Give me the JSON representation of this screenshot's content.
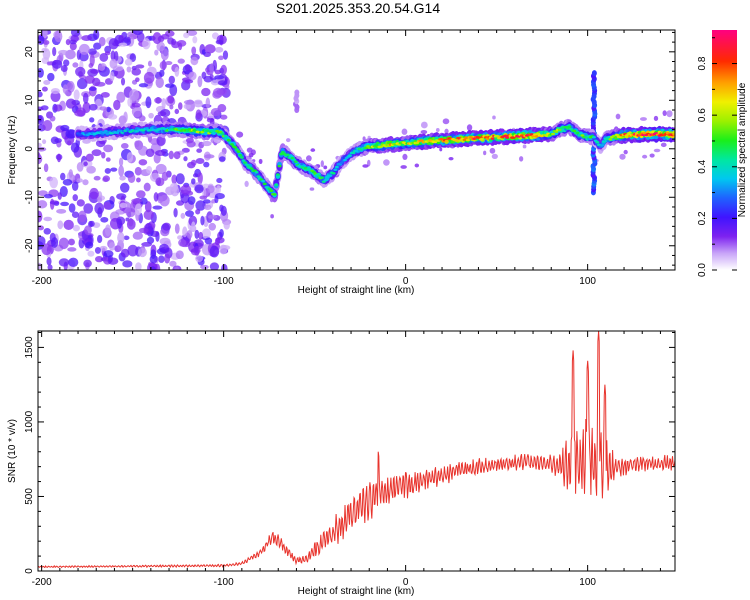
{
  "figure_title": "S201.2025.353.20.54.G14",
  "chart_data": [
    {
      "type": "heatmap",
      "title": "S201.2025.353.20.54.G14",
      "xlabel": "Height of straight line (km)",
      "ylabel": "Frequency (Hz)",
      "xlim": [
        -202,
        148
      ],
      "ylim": [
        -25,
        24.5
      ],
      "xticks": [
        "-200",
        "-100",
        "0",
        "100"
      ],
      "xtick_values": [
        -200,
        -100,
        0,
        100
      ],
      "yticks": [
        "-20",
        "-10",
        "0",
        "10",
        "20"
      ],
      "ytick_values": [
        -20,
        -10,
        0,
        10,
        20
      ],
      "colorbar": {
        "label": "Normalized spectral amplitude",
        "range": [
          0,
          0.93
        ],
        "ticks": [
          "0.0",
          "0.2",
          "0.4",
          "0.6",
          "0.8"
        ],
        "tick_values": [
          0,
          0.2,
          0.4,
          0.6,
          0.8
        ]
      },
      "ridge": {
        "x": [
          -180,
          -160,
          -140,
          -125,
          -112,
          -102,
          -95,
          -88,
          -82,
          -77,
          -72,
          -68,
          -64,
          -60,
          -55,
          -50,
          -45,
          -40,
          -36,
          -30,
          -25,
          -20,
          -10,
          0,
          10,
          20,
          30,
          40,
          50,
          60,
          70,
          80,
          85,
          90,
          95,
          100,
          103,
          107,
          110,
          115,
          120,
          130,
          140,
          148
        ],
        "freq_hz": [
          3.0,
          3.5,
          4.0,
          4.0,
          3.5,
          3.5,
          1.0,
          -3.0,
          -5.0,
          -7.5,
          -9.5,
          -0.5,
          -1.5,
          -3.0,
          -4.0,
          -5.0,
          -6.5,
          -5.0,
          -3.0,
          -1.0,
          0.0,
          0.5,
          0.8,
          1.2,
          1.5,
          1.8,
          2.0,
          2.2,
          2.4,
          2.6,
          2.8,
          3.0,
          4.0,
          4.5,
          3.0,
          2.5,
          2.5,
          0.5,
          2.0,
          2.5,
          2.8,
          3.0,
          3.0,
          3.0
        ],
        "amplitude": [
          0.3,
          0.35,
          0.4,
          0.5,
          0.55,
          0.5,
          0.45,
          0.45,
          0.45,
          0.45,
          0.5,
          0.45,
          0.45,
          0.45,
          0.45,
          0.5,
          0.45,
          0.4,
          0.35,
          0.35,
          0.45,
          0.55,
          0.7,
          0.6,
          0.7,
          0.75,
          0.8,
          0.8,
          0.75,
          0.8,
          0.8,
          0.6,
          0.55,
          0.5,
          0.5,
          0.5,
          0.45,
          0.35,
          0.45,
          0.6,
          0.75,
          0.85,
          0.9,
          0.85
        ]
      },
      "noise": {
        "x_range": [
          -202,
          -98
        ],
        "freq_range": [
          -25,
          24.5
        ],
        "amplitude_range": [
          0.05,
          0.2
        ]
      },
      "spikes": [
        {
          "x": 103.5,
          "freq_from_hz": -9,
          "freq_to_hz": 16,
          "amplitude": 0.3
        },
        {
          "x": -60,
          "freq_from_hz": 8,
          "freq_to_hz": 12,
          "amplitude": 0.1
        }
      ]
    },
    {
      "type": "line",
      "title": "",
      "xlabel": "Height of straight line (km)",
      "ylabel": "SNR (10 * v/v)",
      "xlim": [
        -202,
        148
      ],
      "ylim": [
        0,
        1610
      ],
      "xticks": [
        "-200",
        "-100",
        "0",
        "100"
      ],
      "xtick_values": [
        -200,
        -100,
        0,
        100
      ],
      "yticks": [
        "0",
        "500",
        "1000",
        "1500"
      ],
      "ytick_values": [
        0,
        500,
        1000,
        1500
      ],
      "series": [
        {
          "name": "SNR",
          "color": "#e8332c",
          "envelope_x": [
            -202,
            -150,
            -100,
            -90,
            -80,
            -75,
            -70,
            -65,
            -60,
            -55,
            -50,
            -45,
            -40,
            -35,
            -30,
            -25,
            -20,
            -15,
            -10,
            -5,
            0,
            5,
            10,
            20,
            30,
            40,
            50,
            60,
            70,
            80,
            85,
            90,
            95,
            100,
            105,
            110,
            115,
            120,
            130,
            140,
            148
          ],
          "envelope_y": [
            28,
            32,
            36,
            50,
            120,
            200,
            210,
            130,
            70,
            80,
            140,
            210,
            260,
            310,
            380,
            420,
            480,
            500,
            540,
            560,
            580,
            590,
            610,
            640,
            680,
            700,
            710,
            730,
            730,
            720,
            700,
            720,
            740,
            760,
            720,
            700,
            690,
            700,
            720,
            720,
            730
          ],
          "oscillation": [
            5,
            6,
            8,
            10,
            20,
            35,
            40,
            30,
            20,
            30,
            50,
            70,
            90,
            100,
            110,
            120,
            130,
            120,
            110,
            100,
            90,
            80,
            70,
            60,
            55,
            50,
            50,
            50,
            50,
            60,
            80,
            200,
            250,
            250,
            250,
            250,
            60,
            55,
            50,
            50,
            50
          ],
          "peaks": [
            {
              "x": 92,
              "y": 1480
            },
            {
              "x": 100,
              "y": 1420
            },
            {
              "x": 106,
              "y": 1610
            },
            {
              "x": 109.5,
              "y": 1250
            },
            {
              "x": -15,
              "y": 820
            },
            {
              "x": -73,
              "y": 290
            }
          ]
        }
      ]
    }
  ]
}
